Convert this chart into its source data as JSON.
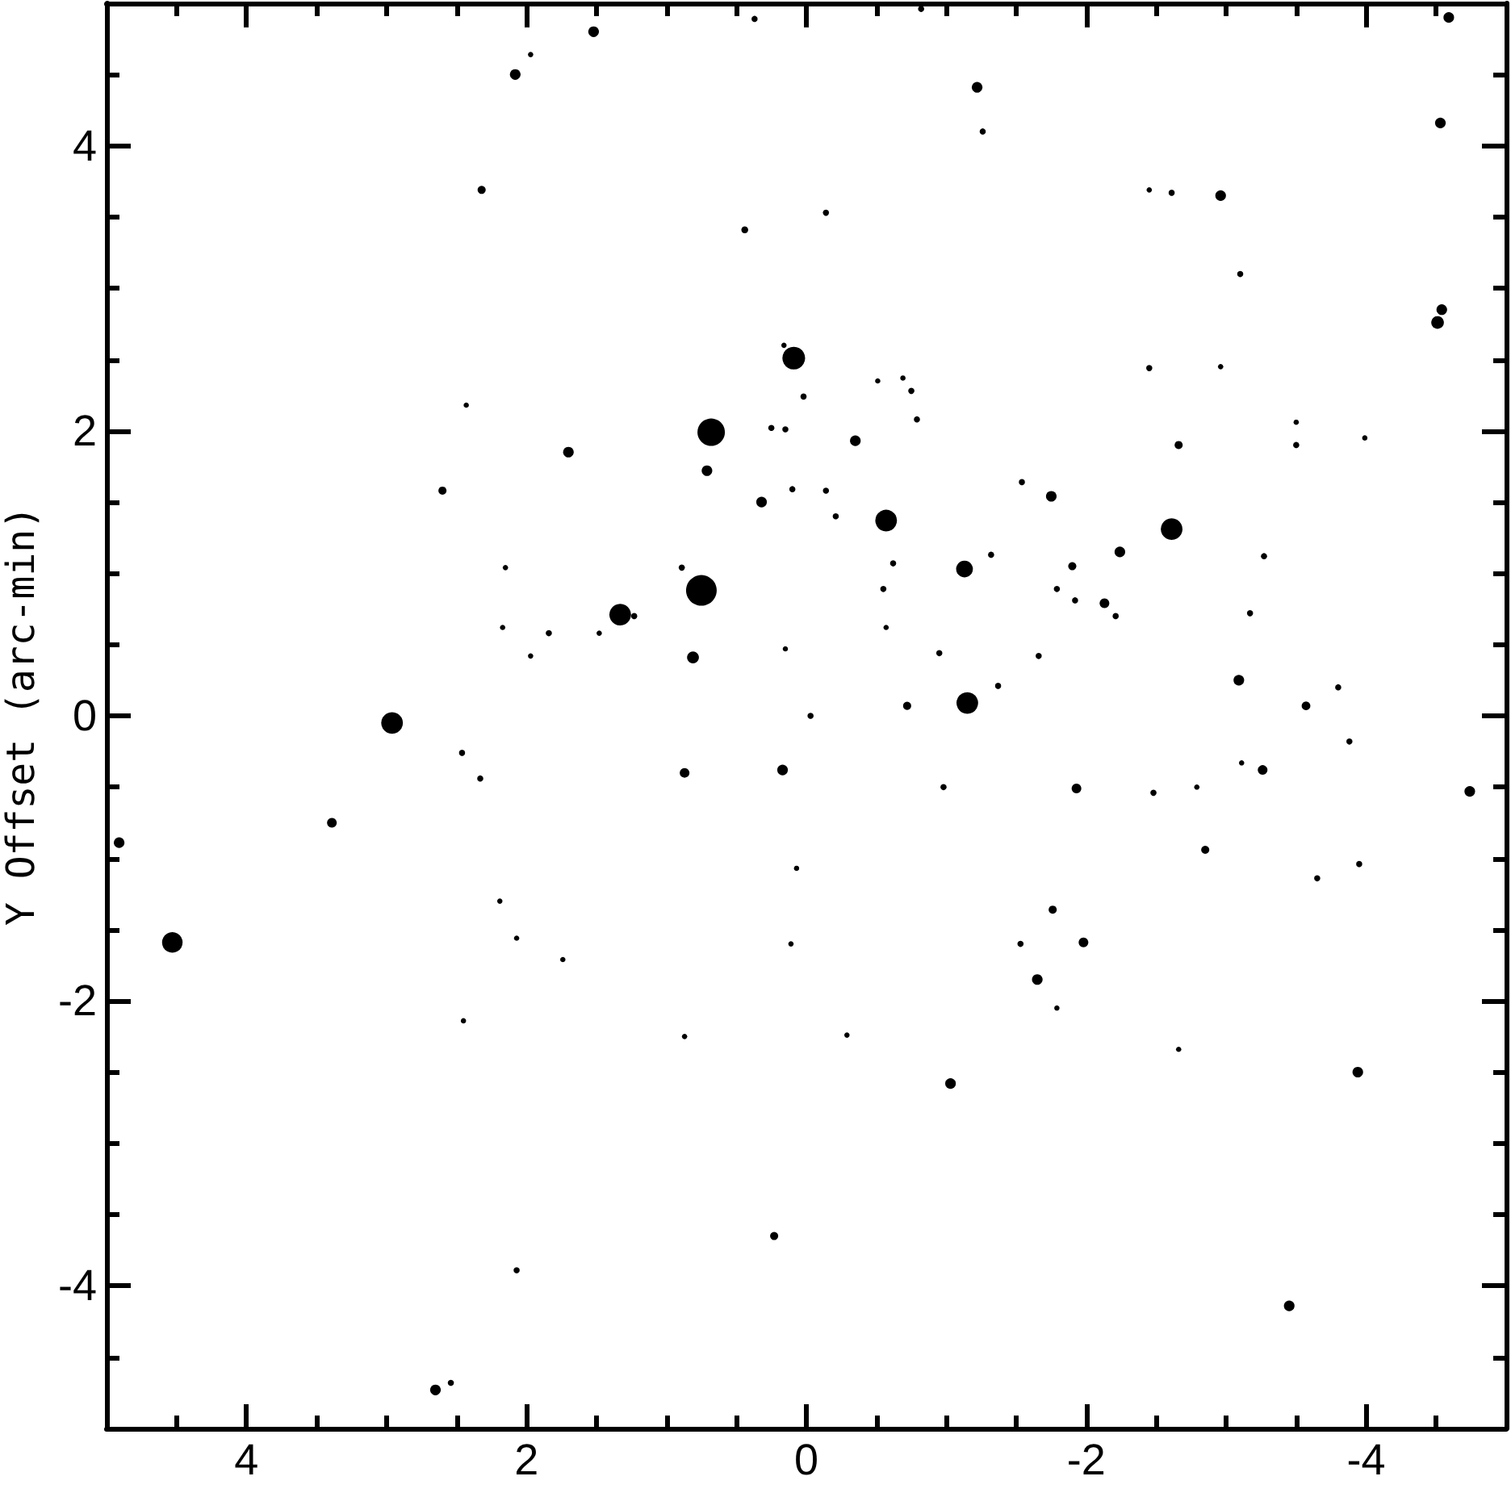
{
  "chart_data": {
    "type": "bubble",
    "ylabel": "Y Offset (arc-min)",
    "color": "#000000",
    "marker": "circle",
    "x": [
      2.08,
      1.97,
      2.32,
      2.43,
      1.7,
      2.6,
      2.15,
      2.17,
      1.84,
      1.97,
      2.96,
      1.52,
      0.37,
      -0.82,
      -1.22,
      -1.26,
      -0.14,
      0.44,
      0.16,
      0.09,
      -0.51,
      -0.69,
      -0.75,
      0.02,
      -0.79,
      0.68,
      0.25,
      0.15,
      -0.35,
      0.71,
      -1.54,
      0.32,
      0.1,
      -0.14,
      -0.21,
      -0.57,
      -0.62,
      -1.32,
      -1.13,
      0.89,
      0.75,
      -0.55,
      1.33,
      1.23,
      1.48,
      -0.57,
      0.81,
      0.15,
      -0.95,
      -1.37,
      -0.03,
      -0.72,
      -1.15,
      -4.59,
      -4.53,
      -2.45,
      -2.61,
      -2.96,
      -3.1,
      -4.54,
      -4.51,
      -2.45,
      -2.96,
      -3.5,
      -3.5,
      -3.99,
      -2.66,
      -1.75,
      -2.61,
      -2.24,
      -3.27,
      -1.9,
      -1.79,
      -1.92,
      -2.13,
      -2.21,
      -3.17,
      -1.66,
      -3.09,
      -3.8,
      -3.57,
      -3.88,
      -1.93,
      -2.48,
      -2.79,
      -3.11,
      -3.26,
      -4.74,
      -2.85,
      -3.65,
      -3.95,
      -1.76,
      -1.53,
      -1.98,
      -1.65,
      -1.79,
      -2.66,
      -3.94,
      -3.45,
      0.87,
      0.17,
      -0.98,
      0.07,
      0.11,
      0.87,
      -0.29,
      -1.03,
      0.23,
      2.46,
      2.33,
      3.39,
      4.91,
      2.19,
      2.07,
      1.74,
      4.53,
      2.45,
      2.07,
      2.65,
      2.54
    ],
    "values": [
      4.5,
      4.64,
      3.69,
      2.18,
      1.85,
      1.58,
      1.04,
      0.62,
      0.58,
      0.42,
      -0.05,
      4.8,
      4.89,
      4.96,
      4.41,
      4.1,
      3.53,
      3.41,
      2.6,
      2.51,
      2.35,
      2.37,
      2.28,
      2.24,
      2.08,
      1.99,
      2.02,
      2.01,
      1.93,
      1.72,
      1.64,
      1.5,
      1.59,
      1.58,
      1.4,
      1.37,
      1.07,
      1.13,
      1.03,
      1.04,
      0.88,
      0.89,
      0.71,
      0.7,
      0.58,
      0.62,
      0.41,
      0.47,
      0.44,
      0.21,
      0.0,
      0.07,
      0.09,
      4.9,
      4.16,
      3.69,
      3.67,
      3.65,
      3.1,
      2.85,
      2.76,
      2.44,
      2.45,
      2.06,
      1.9,
      1.95,
      1.9,
      1.54,
      1.31,
      1.15,
      1.12,
      1.05,
      0.89,
      0.81,
      0.79,
      0.7,
      0.72,
      0.42,
      0.25,
      0.2,
      0.07,
      -0.18,
      -0.51,
      -0.54,
      -0.5,
      -0.33,
      -0.38,
      -0.53,
      -0.94,
      -1.14,
      -1.04,
      -1.36,
      -1.6,
      -1.59,
      -1.85,
      -2.05,
      -2.34,
      -2.5,
      -4.14,
      -0.4,
      -0.38,
      -0.5,
      -1.07,
      -1.6,
      -2.25,
      -2.24,
      -2.58,
      -3.65,
      -0.26,
      -0.44,
      -0.75,
      -0.89,
      -1.3,
      -1.56,
      -1.71,
      -1.59,
      -2.14,
      -3.89,
      -4.73,
      -4.68
    ],
    "sizes": [
      0.12,
      0.03,
      0.07,
      0.03,
      0.12,
      0.07,
      0.03,
      0.03,
      0.04,
      0.03,
      0.5,
      0.12,
      0.04,
      0.04,
      0.12,
      0.04,
      0.04,
      0.05,
      0.03,
      0.55,
      0.03,
      0.03,
      0.04,
      0.04,
      0.04,
      0.8,
      0.04,
      0.04,
      0.12,
      0.12,
      0.04,
      0.12,
      0.04,
      0.04,
      0.04,
      0.5,
      0.04,
      0.04,
      0.3,
      0.04,
      1,
      0.04,
      0.5,
      0.04,
      0.03,
      0.03,
      0.15,
      0.03,
      0.04,
      0.04,
      0.04,
      0.07,
      0.5,
      0.12,
      0.12,
      0.03,
      0.04,
      0.12,
      0.04,
      0.12,
      0.17,
      0.04,
      0.03,
      0.03,
      0.04,
      0.03,
      0.07,
      0.12,
      0.5,
      0.12,
      0.04,
      0.07,
      0.04,
      0.04,
      0.1,
      0.04,
      0.04,
      0.04,
      0.12,
      0.04,
      0.08,
      0.04,
      0.1,
      0.04,
      0.03,
      0.03,
      0.1,
      0.12,
      0.07,
      0.04,
      0.04,
      0.07,
      0.04,
      0.1,
      0.12,
      0.03,
      0.03,
      0.12,
      0.12,
      0.1,
      0.12,
      0.04,
      0.03,
      0.03,
      0.03,
      0.03,
      0.12,
      0.07,
      0.04,
      0.04,
      0.1,
      0.12,
      0.03,
      0.03,
      0.03,
      0.45,
      0.03,
      0.04,
      0.12,
      0.04
    ],
    "xlim": [
      5,
      -5
    ],
    "ylim": [
      -5,
      5
    ],
    "xticks": [
      {
        "value": -4.5,
        "label": null
      },
      -4,
      {
        "value": -3.5,
        "label": null
      },
      {
        "value": -3,
        "label": null
      },
      {
        "value": -2.5,
        "label": null
      },
      -2,
      {
        "value": -1.5,
        "label": null
      },
      {
        "value": -1,
        "label": null
      },
      {
        "value": -0.5,
        "label": null
      },
      0,
      {
        "value": 0.5,
        "label": null
      },
      {
        "value": 1,
        "label": null
      },
      {
        "value": 1.5,
        "label": null
      },
      2,
      {
        "value": 2.5,
        "label": null
      },
      {
        "value": 3,
        "label": null
      },
      {
        "value": 3.5,
        "label": null
      },
      4,
      {
        "value": 4.5,
        "label": null
      }
    ],
    "yticks": [
      {
        "value": -4.5,
        "label": null
      },
      -4,
      {
        "value": -3.5,
        "label": null
      },
      {
        "value": -3,
        "label": null
      },
      {
        "value": -2.5,
        "label": null
      },
      -2,
      {
        "value": -1.5,
        "label": null
      },
      {
        "value": -1,
        "label": null
      },
      {
        "value": -0.5,
        "label": null
      },
      0,
      {
        "value": 0.5,
        "label": null
      },
      {
        "value": 1,
        "label": null
      },
      {
        "value": 1.5,
        "label": null
      },
      2,
      {
        "value": 2.5,
        "label": null
      },
      {
        "value": 3,
        "label": null
      },
      {
        "value": 3.5,
        "label": null
      },
      4,
      {
        "value": 4.5,
        "label": null
      }
    ]
  }
}
